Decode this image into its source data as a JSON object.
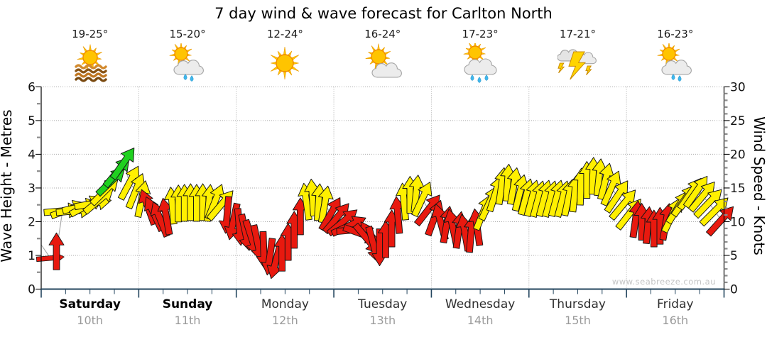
{
  "title": "7 day wind & wave forecast for Carlton North",
  "watermark": "www.seabreeze.com.au",
  "days": [
    {
      "name": "Saturday",
      "date": "10th",
      "temp": "19-25°",
      "icon": "sun-over-water"
    },
    {
      "name": "Sunday",
      "date": "11th",
      "temp": "15-20°",
      "icon": "sun-cloud-rain2"
    },
    {
      "name": "Monday",
      "date": "12th",
      "temp": "12-24°",
      "icon": "sunny"
    },
    {
      "name": "Tuesday",
      "date": "13th",
      "temp": "16-24°",
      "icon": "sun-cloud"
    },
    {
      "name": "Wednesday",
      "date": "14th",
      "temp": "17-23°",
      "icon": "sun-cloud-rain3"
    },
    {
      "name": "Thursday",
      "date": "15th",
      "temp": "17-21°",
      "icon": "thunderstorm"
    },
    {
      "name": "Friday",
      "date": "16th",
      "temp": "16-23°",
      "icon": "sun-cloud-rain2"
    }
  ],
  "axes": {
    "left_label": "Wave Height - Metres",
    "right_label": "Wind Speed - Knots",
    "left_ticks": [
      0,
      1,
      2,
      3,
      4,
      5,
      6
    ],
    "right_ticks": [
      0,
      5,
      10,
      15,
      20,
      25,
      30
    ]
  },
  "colors": {
    "yellow": "#FFF000",
    "red": "#E8190F",
    "green": "#1FD11F",
    "axis_bottom": "#23455E",
    "grid": "#AAAAAA",
    "wave_line": "#AAAAAA"
  },
  "chart_data": {
    "type": "wind-arrow-timeseries",
    "points_per_day": 16,
    "x_range_days": [
      0,
      7
    ],
    "y_left_range_metres": [
      0,
      6
    ],
    "y_right_range_knots": [
      0,
      30
    ],
    "knots": [
      null,
      4.6,
      5.6,
      11.6,
      11.8,
      11.6,
      12.2,
      12.4,
      12.7,
      13.2,
      14.6,
      16.0,
      17.4,
      18.7,
      15.8,
      14.6,
      13.4,
      12.2,
      11.2,
      10.4,
      10.8,
      12.4,
      12.7,
      12.8,
      12.9,
      12.8,
      12.9,
      12.8,
      13.0,
      12.5,
      11.0,
      10.0,
      9.2,
      8.4,
      7.6,
      6.8,
      5.8,
      4.8,
      4.2,
      5.4,
      7.0,
      8.8,
      10.8,
      13.0,
      13.6,
      12.9,
      12.6,
      11.2,
      10.6,
      10.0,
      9.4,
      8.8,
      8.2,
      7.4,
      6.6,
      6.2,
      7.4,
      9.0,
      11.0,
      13.0,
      14.0,
      14.2,
      13.4,
      11.8,
      10.6,
      10.0,
      9.6,
      9.2,
      8.8,
      8.4,
      8.2,
      9.2,
      11.4,
      12.8,
      14.2,
      15.3,
      15.8,
      15.3,
      14.3,
      13.7,
      13.5,
      13.4,
      13.5,
      13.4,
      13.5,
      13.4,
      13.6,
      14.2,
      15.2,
      16.2,
      16.8,
      16.6,
      16.0,
      15.0,
      13.8,
      12.6,
      11.2,
      10.4,
      10.0,
      9.5,
      9.0,
      9.4,
      10.0,
      11.0,
      12.2,
      13.2,
      14.2,
      14.5,
      13.8,
      12.8,
      11.6,
      10.2
    ],
    "dir_deg": [
      0,
      85,
      0,
      85,
      70,
      85,
      78,
      62,
      80,
      50,
      45,
      46,
      40,
      35,
      28,
      22,
      12,
      -20,
      -25,
      -22,
      -10,
      -5,
      0,
      0,
      0,
      0,
      0,
      5,
      22,
      40,
      185,
      192,
      175,
      168,
      162,
      168,
      178,
      188,
      195,
      0,
      0,
      0,
      0,
      -8,
      -4,
      4,
      10,
      30,
      40,
      50,
      65,
      85,
      110,
      140,
      165,
      180,
      0,
      0,
      -5,
      -5,
      0,
      6,
      25,
      38,
      20,
      -15,
      10,
      -12,
      8,
      -10,
      5,
      -8,
      22,
      25,
      18,
      8,
      4,
      10,
      14,
      15,
      15,
      15,
      15,
      15,
      15,
      15,
      12,
      6,
      2,
      0,
      2,
      6,
      14,
      24,
      34,
      40,
      38,
      8,
      0,
      5,
      0,
      0,
      10,
      25,
      32,
      35,
      35,
      35,
      40,
      44,
      45,
      42
    ],
    "color_key": [
      "r",
      "r",
      "r",
      "y",
      "y",
      "y",
      "y",
      "y",
      "y",
      "y",
      "y",
      "g",
      "g",
      "g",
      "y",
      "y",
      "y",
      "r",
      "r",
      "r",
      "r",
      "y",
      "y",
      "y",
      "y",
      "y",
      "y",
      "y",
      "y",
      "y",
      "r",
      "r",
      "r",
      "r",
      "r",
      "r",
      "r",
      "r",
      "r",
      "r",
      "r",
      "r",
      "r",
      "y",
      "y",
      "y",
      "y",
      "r",
      "r",
      "r",
      "r",
      "r",
      "r",
      "r",
      "r",
      "r",
      "r",
      "r",
      "r",
      "y",
      "y",
      "y",
      "y",
      "r",
      "r",
      "r",
      "r",
      "r",
      "r",
      "r",
      "r",
      "r",
      "y",
      "y",
      "y",
      "y",
      "y",
      "y",
      "y",
      "y",
      "y",
      "y",
      "y",
      "y",
      "y",
      "y",
      "y",
      "y",
      "y",
      "y",
      "y",
      "y",
      "y",
      "y",
      "y",
      "y",
      "y",
      "r",
      "r",
      "r",
      "r",
      "r",
      "r",
      "y",
      "y",
      "y",
      "y",
      "y",
      "y",
      "y",
      "y",
      "r"
    ]
  }
}
